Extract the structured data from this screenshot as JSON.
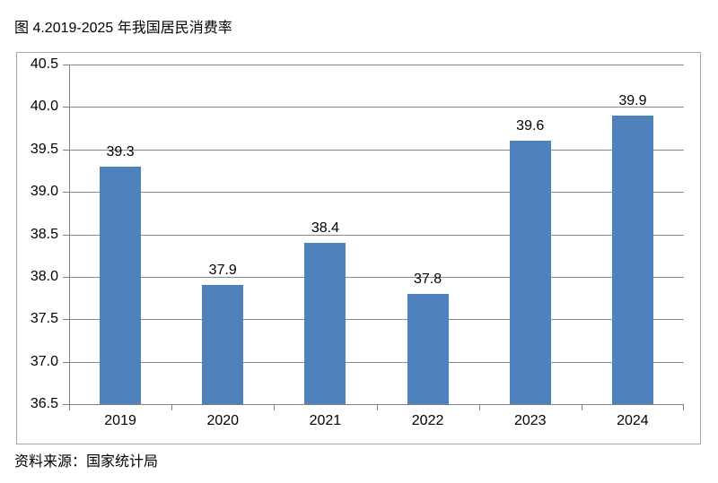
{
  "page": {
    "title": "图 4.2019-2025 年我国居民消费率",
    "source_note": "资料来源：国家统计局"
  },
  "chart_data": {
    "type": "bar",
    "title": "图 4.2019-2025 年我国居民消费率",
    "categories": [
      "2019",
      "2020",
      "2021",
      "2022",
      "2023",
      "2024"
    ],
    "values": [
      39.3,
      37.9,
      38.4,
      37.8,
      39.6,
      39.9
    ],
    "data_labels": [
      "39.3",
      "37.9",
      "38.4",
      "37.8",
      "39.6",
      "39.9"
    ],
    "xlabel": "",
    "ylabel": "",
    "ylim": [
      36.5,
      40.5
    ],
    "ytick_step": 0.5,
    "yticks": [
      "40.5",
      "40.0",
      "39.5",
      "39.0",
      "38.5",
      "38.0",
      "37.5",
      "37.0",
      "36.5"
    ],
    "grid": true,
    "legend": false,
    "source_note": "资料来源：国家统计局",
    "colors": {
      "bar_fill": "#4f81bd",
      "gridline": "#898989",
      "axis": "#808080",
      "frame_border": "#a6a6a6",
      "text": "#000000"
    }
  }
}
